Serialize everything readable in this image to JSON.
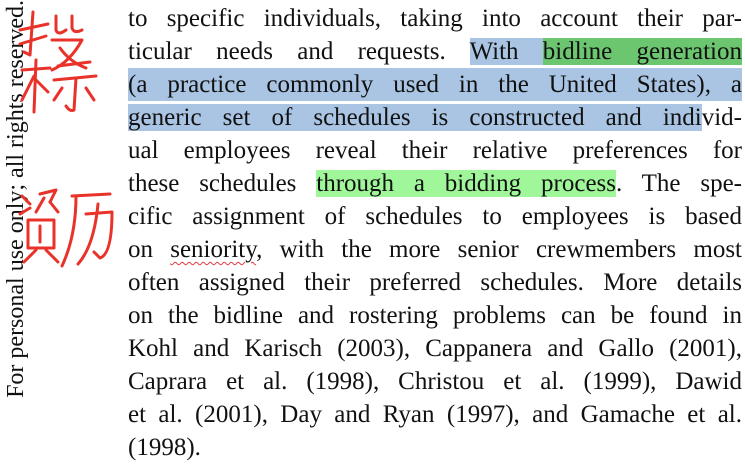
{
  "margin_note": "For personal use only; all rights reserved.",
  "annotations": {
    "top_note": "投标",
    "bottom_note": "资历",
    "ink_color": "#e8322a"
  },
  "paragraph": {
    "lines": [
      [
        "to specific individuals, taking into account their par-"
      ],
      [
        "ticular needs and requests. ",
        "With ",
        "bidline generation"
      ],
      [
        "(a practice commonly used in the United States), a"
      ],
      [
        "generic set of schedules is constructed and indi",
        "vid-"
      ],
      [
        "ual employees reveal their relative preferences for"
      ],
      [
        "these schedules ",
        "through a bidding process",
        ". The spe-"
      ],
      [
        "cific assignment of schedules to employees is based"
      ],
      [
        "on ",
        "seniority",
        ", with the more senior crewmembers most"
      ],
      [
        "often assigned their preferred schedules. More details"
      ],
      [
        "on the bidline and rostering problems can be found in"
      ],
      [
        "Kohl and Karisch (2003), Cappanera and Gallo (2001),"
      ],
      [
        "Caprara et al. (1998), Christou et al. (1999), Dawid"
      ],
      [
        "et al. (2001), Day and Ryan (1997), and Gamache et al."
      ],
      [
        "(1998)."
      ]
    ]
  },
  "highlight_colors": {
    "blue": "#a9c5e3",
    "green": "#6cc56f",
    "lime": "#9ff79a",
    "squiggle": "#e0393e"
  }
}
